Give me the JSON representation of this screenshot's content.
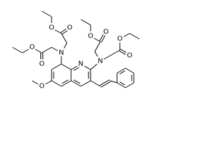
{
  "atoms": [
    "N",
    "N",
    "N",
    "O",
    "O",
    "O",
    "O",
    "O",
    "O",
    "O",
    "O",
    "O"
  ]
}
